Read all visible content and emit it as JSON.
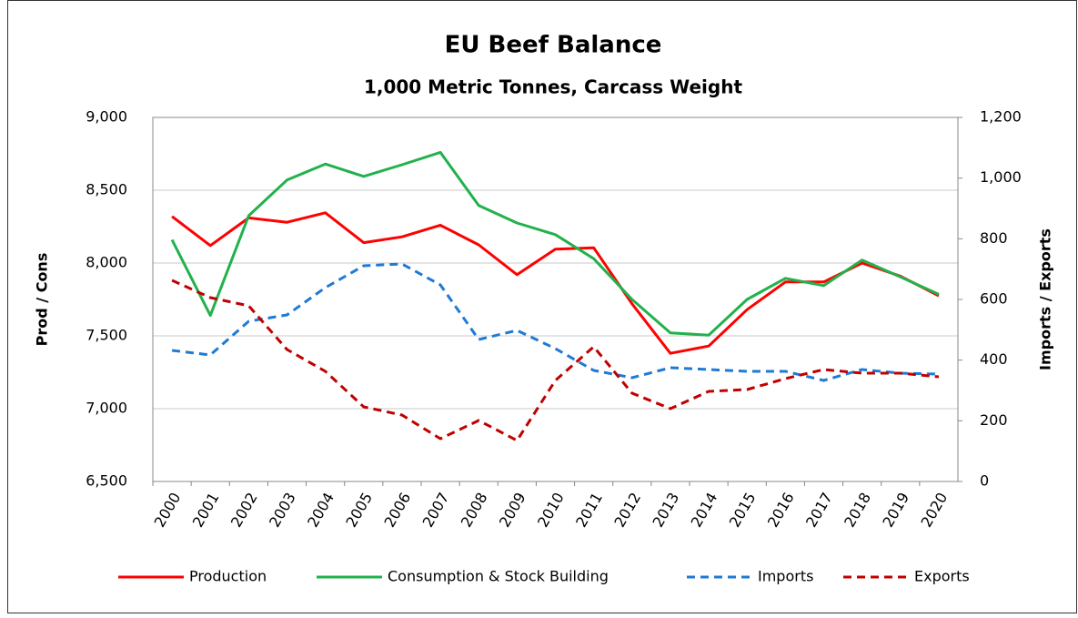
{
  "chart_data": {
    "type": "line",
    "title": "EU Beef Balance",
    "subtitle": "1,000 Metric Tonnes, Carcass Weight",
    "ylabel": "Prod / Cons",
    "y2label": "Imports / Exports",
    "categories": [
      "2000",
      "2001",
      "2002",
      "2003",
      "2004",
      "2005",
      "2006",
      "2007",
      "2008",
      "2009",
      "2010",
      "2011",
      "2012",
      "2013",
      "2014",
      "2015",
      "2016",
      "2017",
      "2018",
      "2019",
      "2020"
    ],
    "ylim": [
      6500,
      9000
    ],
    "yticks": [
      {
        "value": 6500,
        "label": "6,500"
      },
      {
        "value": 7000,
        "label": "7,000"
      },
      {
        "value": 7500,
        "label": "7,500"
      },
      {
        "value": 8000,
        "label": "8,000"
      },
      {
        "value": 8500,
        "label": "8,500"
      },
      {
        "value": 9000,
        "label": "9,000"
      }
    ],
    "y2lim": [
      0,
      1200
    ],
    "y2ticks": [
      0,
      200,
      400,
      600,
      800,
      {
        "value": 1000,
        "label": "1,000"
      },
      {
        "value": 1200,
        "label": "1,200"
      }
    ],
    "grid": true,
    "legend": "bottom",
    "series": [
      {
        "name": "Production",
        "color": "#ff0000",
        "linestyle": "solid",
        "values": [
          8320,
          8120,
          8310,
          8280,
          8345,
          8140,
          8180,
          8260,
          8125,
          7920,
          8095,
          8105,
          7720,
          7380,
          7430,
          7680,
          7870,
          7870,
          8000,
          7910,
          7775
        ]
      },
      {
        "name": "Consumption & Stock Building",
        "color": "#22b14c",
        "linestyle": "solid",
        "values": [
          8160,
          7640,
          8325,
          8570,
          8680,
          8595,
          8675,
          8760,
          8395,
          8275,
          8195,
          8030,
          7750,
          7520,
          7505,
          7750,
          7895,
          7845,
          8020,
          7905,
          7785
        ]
      },
      {
        "name": "Imports",
        "color": "#1f7ad6",
        "linestyle": "dashed",
        "axis": "y2",
        "values": [
          432,
          417,
          528,
          549,
          639,
          711,
          717,
          648,
          468,
          498,
          438,
          366,
          342,
          375,
          369,
          363,
          363,
          333,
          369,
          357,
          354
        ]
      },
      {
        "name": "Exports",
        "color": "#c00000",
        "linestyle": "dashed",
        "axis": "y2",
        "values": [
          663,
          606,
          579,
          435,
          363,
          246,
          219,
          141,
          201,
          135,
          333,
          444,
          291,
          240,
          297,
          303,
          339,
          369,
          357,
          357,
          345
        ]
      }
    ]
  }
}
